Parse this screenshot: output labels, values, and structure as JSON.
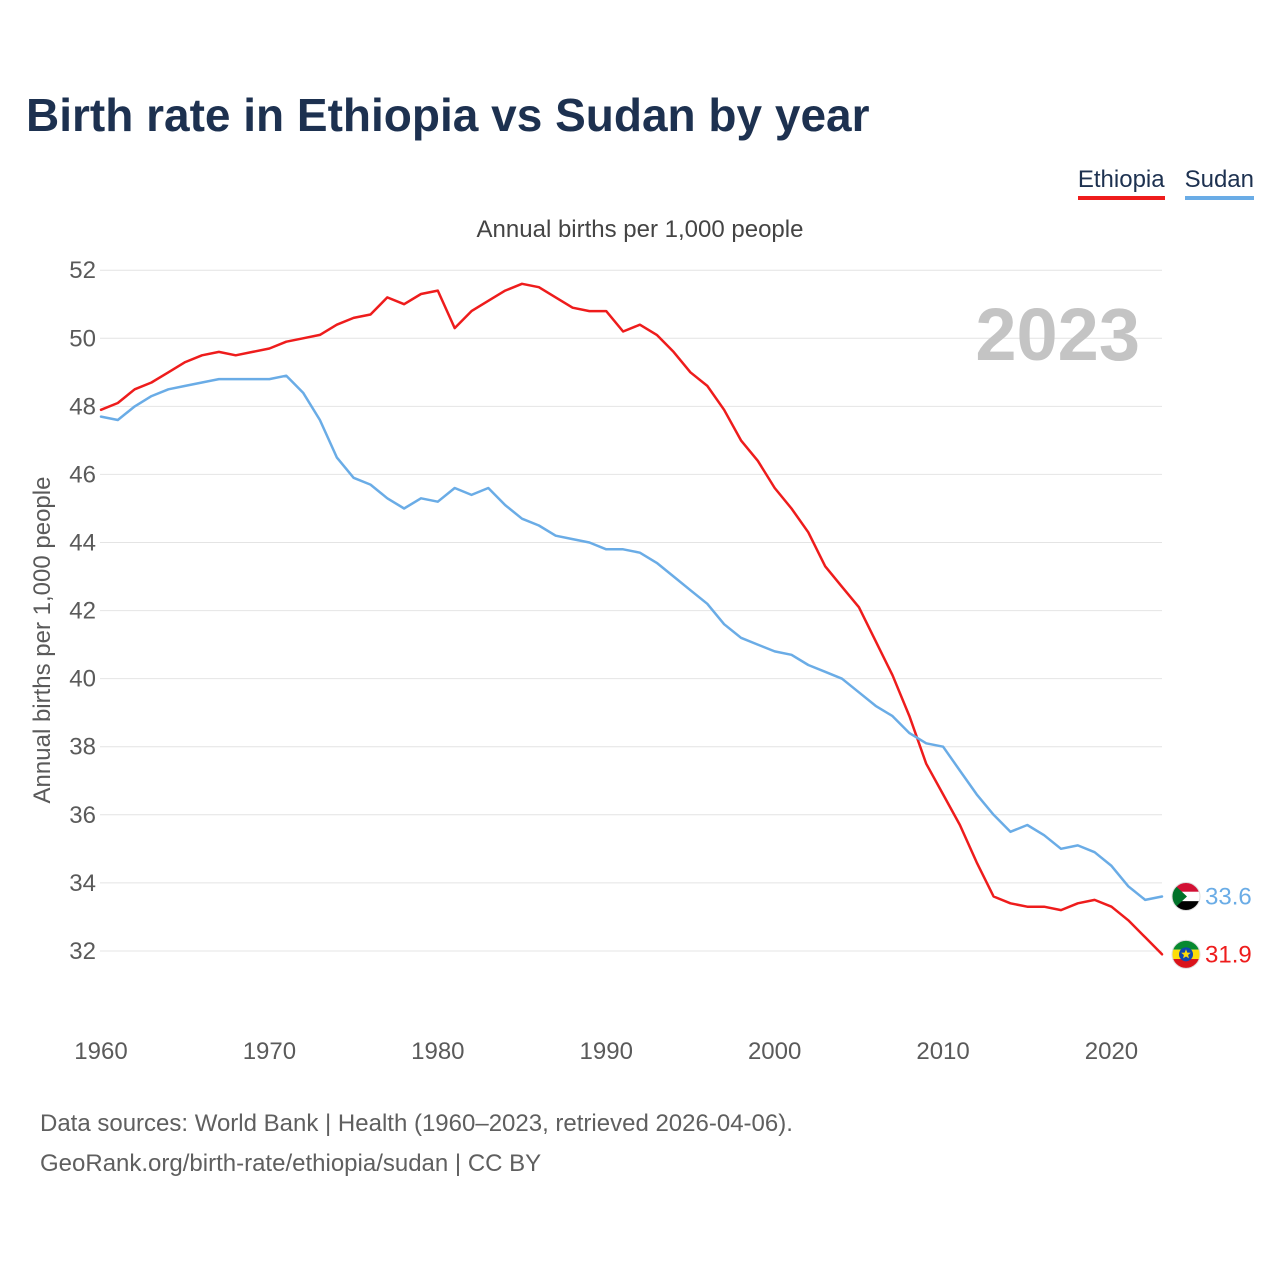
{
  "header": {
    "title": "Birth rate in Ethiopia vs Sudan by year",
    "subtitle": "Annual births per 1,000 people"
  },
  "legend": [
    {
      "label": "Ethiopia",
      "color": "#ee1c1c"
    },
    {
      "label": "Sudan",
      "color": "#6aace6"
    }
  ],
  "footer": {
    "source": "Data sources: World Bank | Health (1960–2023, retrieved 2026-04-06).",
    "url": "GeoRank.org/birth-rate/ethiopia/sudan | CC BY"
  },
  "chart_data": {
    "type": "line",
    "title": "Birth rate in Ethiopia vs Sudan by year",
    "ylabel": "Annual births per 1,000 people",
    "xlabel": "",
    "watermark": "2023",
    "xlim": [
      1960,
      2023
    ],
    "ylim": [
      30.5,
      52.3
    ],
    "xticks": [
      1960,
      1970,
      1980,
      1990,
      2000,
      2010,
      2020
    ],
    "yticks": [
      32,
      34,
      36,
      38,
      40,
      42,
      44,
      46,
      48,
      50,
      52
    ],
    "grid": true,
    "legend_position": "top-right",
    "x": [
      1960,
      1961,
      1962,
      1963,
      1964,
      1965,
      1966,
      1967,
      1968,
      1969,
      1970,
      1971,
      1972,
      1973,
      1974,
      1975,
      1976,
      1977,
      1978,
      1979,
      1980,
      1981,
      1982,
      1983,
      1984,
      1985,
      1986,
      1987,
      1988,
      1989,
      1990,
      1991,
      1992,
      1993,
      1994,
      1995,
      1996,
      1997,
      1998,
      1999,
      2000,
      2001,
      2002,
      2003,
      2004,
      2005,
      2006,
      2007,
      2008,
      2009,
      2010,
      2011,
      2012,
      2013,
      2014,
      2015,
      2016,
      2017,
      2018,
      2019,
      2020,
      2021,
      2022,
      2023
    ],
    "series": [
      {
        "name": "Ethiopia",
        "color": "#ee1c1c",
        "end_label": "31.9",
        "values": [
          47.9,
          48.1,
          48.5,
          48.7,
          49.0,
          49.3,
          49.5,
          49.6,
          49.5,
          49.6,
          49.7,
          49.9,
          50.0,
          50.1,
          50.4,
          50.6,
          50.7,
          51.2,
          51.0,
          51.3,
          51.4,
          50.3,
          50.8,
          51.1,
          51.4,
          51.6,
          51.5,
          51.2,
          50.9,
          50.8,
          50.8,
          50.2,
          50.4,
          50.1,
          49.6,
          49.0,
          48.6,
          47.9,
          47.0,
          46.4,
          45.6,
          45.0,
          44.3,
          43.3,
          42.7,
          42.1,
          41.1,
          40.1,
          38.9,
          37.5,
          36.6,
          35.7,
          34.6,
          33.6,
          33.4,
          33.3,
          33.3,
          33.2,
          33.4,
          33.5,
          33.3,
          32.9,
          32.4,
          31.9
        ]
      },
      {
        "name": "Sudan",
        "color": "#6aace6",
        "end_label": "33.6",
        "values": [
          47.7,
          47.6,
          48.0,
          48.3,
          48.5,
          48.6,
          48.7,
          48.8,
          48.8,
          48.8,
          48.8,
          48.9,
          48.4,
          47.6,
          46.5,
          45.9,
          45.7,
          45.3,
          45.0,
          45.3,
          45.2,
          45.6,
          45.4,
          45.6,
          45.1,
          44.7,
          44.5,
          44.2,
          44.1,
          44.0,
          43.8,
          43.8,
          43.7,
          43.4,
          43.0,
          42.6,
          42.2,
          41.6,
          41.2,
          41.0,
          40.8,
          40.7,
          40.4,
          40.2,
          40.0,
          39.6,
          39.2,
          38.9,
          38.4,
          38.1,
          38.0,
          37.3,
          36.6,
          36.0,
          35.5,
          35.7,
          35.4,
          35.0,
          35.1,
          34.9,
          34.5,
          33.9,
          33.5,
          33.6
        ]
      }
    ]
  }
}
